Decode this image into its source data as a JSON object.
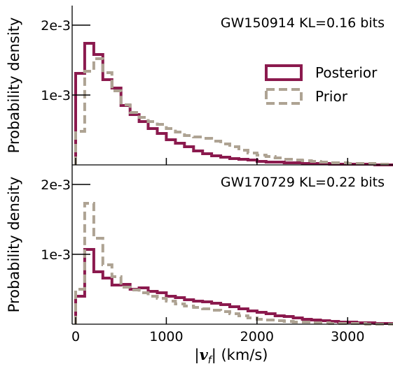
{
  "chart_data": {
    "type": "histogram",
    "xlabel": "|v_f| (km/s)",
    "xlabel_parts": {
      "bar_left": "|",
      "var": "v",
      "sub": "f",
      "bar_right": "|",
      "units": " (km/s)"
    },
    "xlim": [
      0,
      3500
    ],
    "x_ticks": [
      0,
      1000,
      2000,
      3000
    ],
    "x_tick_labels": [
      "0",
      "1000",
      "2000",
      "3000"
    ],
    "bin_width": 100,
    "bin_start": 0,
    "colors": {
      "posterior": "#8b1a4e",
      "prior": "#aea393"
    },
    "legend": {
      "position": "upper-right",
      "entries": [
        {
          "name": "Posterior",
          "style": "solid"
        },
        {
          "name": "Prior",
          "style": "dashed"
        }
      ]
    },
    "panels": [
      {
        "annotation": "GW150914 KL=0.16 bits",
        "ylabel": "Probability density",
        "ylim": [
          0,
          0.00228
        ],
        "y_ticks": [
          0.001,
          0.002
        ],
        "y_tick_labels": [
          "1e-3",
          "2e-3"
        ],
        "show_legend": true,
        "series": [
          {
            "name": "Posterior",
            "values": [
              0.00131,
              0.00174,
              0.00158,
              0.00122,
              0.0011,
              0.00085,
              0.00072,
              0.00062,
              0.00052,
              0.00045,
              0.00036,
              0.00031,
              0.00026,
              0.0002,
              0.00016,
              0.00013,
              0.00011,
              9e-05,
              8e-05,
              7e-05,
              5e-05,
              4e-05,
              4e-05,
              3e-05,
              3e-05,
              2e-05,
              2e-05,
              2e-05,
              1e-05,
              1e-05,
              1e-05,
              1e-05,
              1e-05,
              0.0,
              0.0
            ]
          },
          {
            "name": "Prior",
            "values": [
              0.00048,
              0.00134,
              0.00152,
              0.00132,
              0.00106,
              0.00086,
              0.00075,
              0.00068,
              0.00062,
              0.00058,
              0.00052,
              0.00047,
              0.00042,
              0.0004,
              0.00038,
              0.00034,
              0.0003,
              0.00026,
              0.00021,
              0.00017,
              0.00014,
              0.00012,
              0.0001,
              8e-05,
              7e-05,
              6e-05,
              5e-05,
              4e-05,
              3e-05,
              3e-05,
              2e-05,
              2e-05,
              2e-05,
              1e-05,
              1e-05
            ]
          }
        ]
      },
      {
        "annotation": "GW170729 KL=0.22 bits",
        "ylabel": "Probability density",
        "ylim": [
          0,
          0.00228
        ],
        "y_ticks": [
          0.001,
          0.002
        ],
        "y_tick_labels": [
          "1e-3",
          "2e-3"
        ],
        "show_legend": false,
        "series": [
          {
            "name": "Posterior",
            "values": [
              0.0004,
              0.00107,
              0.00075,
              0.00066,
              0.00056,
              0.00057,
              0.0005,
              0.00052,
              0.00047,
              0.00045,
              0.0004,
              0.00038,
              0.00035,
              0.00033,
              0.00032,
              0.0003,
              0.00028,
              0.00025,
              0.00022,
              0.00019,
              0.00017,
              0.00015,
              0.00012,
              0.00011,
              9e-05,
              7e-05,
              6e-05,
              5e-05,
              4e-05,
              3e-05,
              3e-05,
              2e-05,
              2e-05,
              1e-05,
              1e-05
            ]
          },
          {
            "name": "Prior",
            "values": [
              0.0005,
              0.00173,
              0.00123,
              0.00085,
              0.00068,
              0.00053,
              0.00049,
              0.00045,
              0.0004,
              0.00037,
              0.00033,
              0.00029,
              0.00026,
              0.00024,
              0.00022,
              0.0002,
              0.00018,
              0.00015,
              0.00012,
              9e-05,
              7e-05,
              6e-05,
              5e-05,
              4e-05,
              3e-05,
              3e-05,
              2e-05,
              2e-05,
              1e-05,
              1e-05,
              1e-05,
              1e-05,
              0.0,
              0.0,
              0.0
            ]
          }
        ]
      }
    ]
  }
}
